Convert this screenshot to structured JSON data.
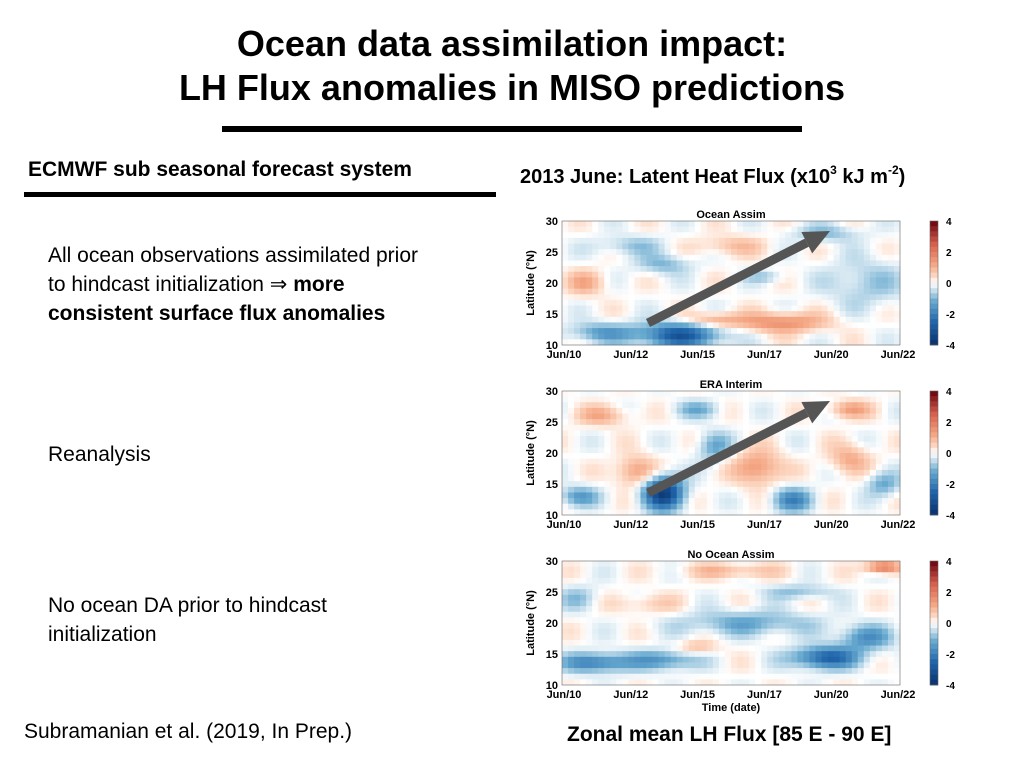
{
  "slide": {
    "title_line1": "Ocean data assimilation impact:",
    "title_line2": "LH Flux anomalies in MISO predictions",
    "left_heading": "ECMWF sub seasonal forecast system",
    "para1_line1": "All ocean observations assimilated prior",
    "para1_line2_start": "to hindcast initialization ⇒ ",
    "para1_line2_bold": "more",
    "para1_line3": "consistent surface flux anomalies",
    "para2": "Reanalysis",
    "para3_line1": "No ocean DA prior to hindcast",
    "para3_line2": "initialization",
    "citation": "Subramanian et al. (2019, In Prep.)",
    "right_heading_prefix": "2013 June: Latent Heat Flux (x10",
    "right_heading_exp1": "3",
    "right_heading_mid": " kJ m",
    "right_heading_exp2": "-2",
    "right_heading_suffix": ")",
    "zonal_caption": "Zonal mean LH Flux [85 E - 90 E]"
  },
  "chart_data": [
    {
      "type": "heatmap",
      "title": "Ocean Assim",
      "ylabel": "Latitude (°N)",
      "xlabel": "",
      "yticks": [
        "30",
        "25",
        "20",
        "15",
        "10"
      ],
      "xticks": [
        "Jun/10",
        "Jun/12",
        "Jun/15",
        "Jun/17",
        "Jun/20",
        "Jun/22"
      ],
      "colorbar_ticks": [
        "4",
        "2",
        "0",
        "-2",
        "-4"
      ],
      "arrow": true
    },
    {
      "type": "heatmap",
      "title": "ERA Interim",
      "ylabel": "Latitude (°N)",
      "xlabel": "",
      "yticks": [
        "30",
        "25",
        "20",
        "15",
        "10"
      ],
      "xticks": [
        "Jun/10",
        "Jun/12",
        "Jun/15",
        "Jun/17",
        "Jun/20",
        "Jun/22"
      ],
      "colorbar_ticks": [
        "4",
        "2",
        "0",
        "-2",
        "-4"
      ],
      "arrow": true
    },
    {
      "type": "heatmap",
      "title": "No Ocean Assim",
      "ylabel": "Latitude (°N)",
      "xlabel": "Time (date)",
      "yticks": [
        "30",
        "25",
        "20",
        "15",
        "10"
      ],
      "xticks": [
        "Jun/10",
        "Jun/12",
        "Jun/15",
        "Jun/17",
        "Jun/20",
        "Jun/22"
      ],
      "colorbar_ticks": [
        "4",
        "2",
        "0",
        "-2",
        "-4"
      ],
      "arrow": false
    }
  ]
}
